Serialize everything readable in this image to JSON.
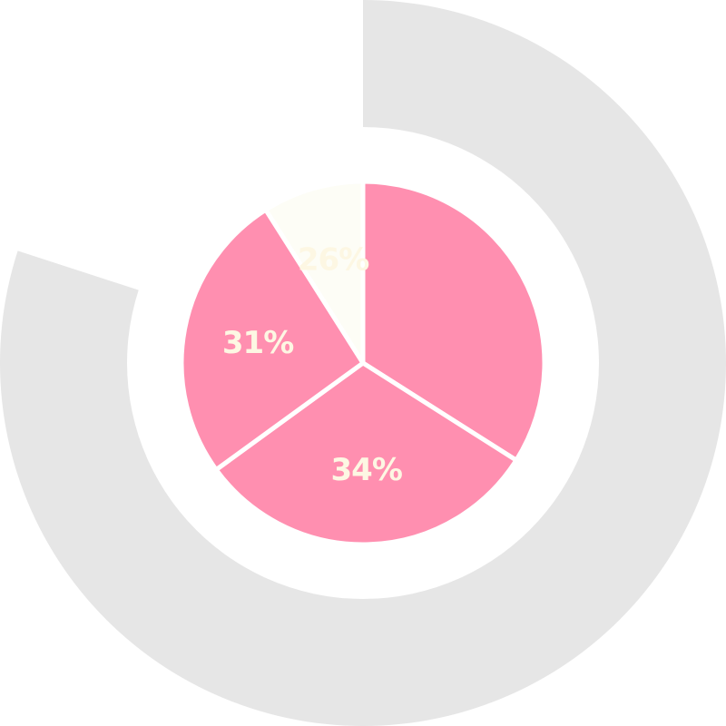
{
  "chart_data": {
    "type": "pie",
    "layers": [
      {
        "name": "",
        "kind": "ring",
        "value_fraction": 0.8,
        "color": "#e6e6e6"
      },
      {
        "name": "",
        "kind": "pie",
        "slices": [
          {
            "label": "34%",
            "value": 34,
            "color": "#ff8fb0"
          },
          {
            "label": "31%",
            "value": 31,
            "color": "#ff8fb0"
          },
          {
            "label": "26%",
            "value": 26,
            "color": "#ff8fb0"
          },
          {
            "label": "",
            "value": 9,
            "color": "#fdfdf6"
          }
        ]
      }
    ],
    "label_color": "#fdf7e3",
    "separator_color": "#ffffff",
    "title": "",
    "legend": "none"
  }
}
